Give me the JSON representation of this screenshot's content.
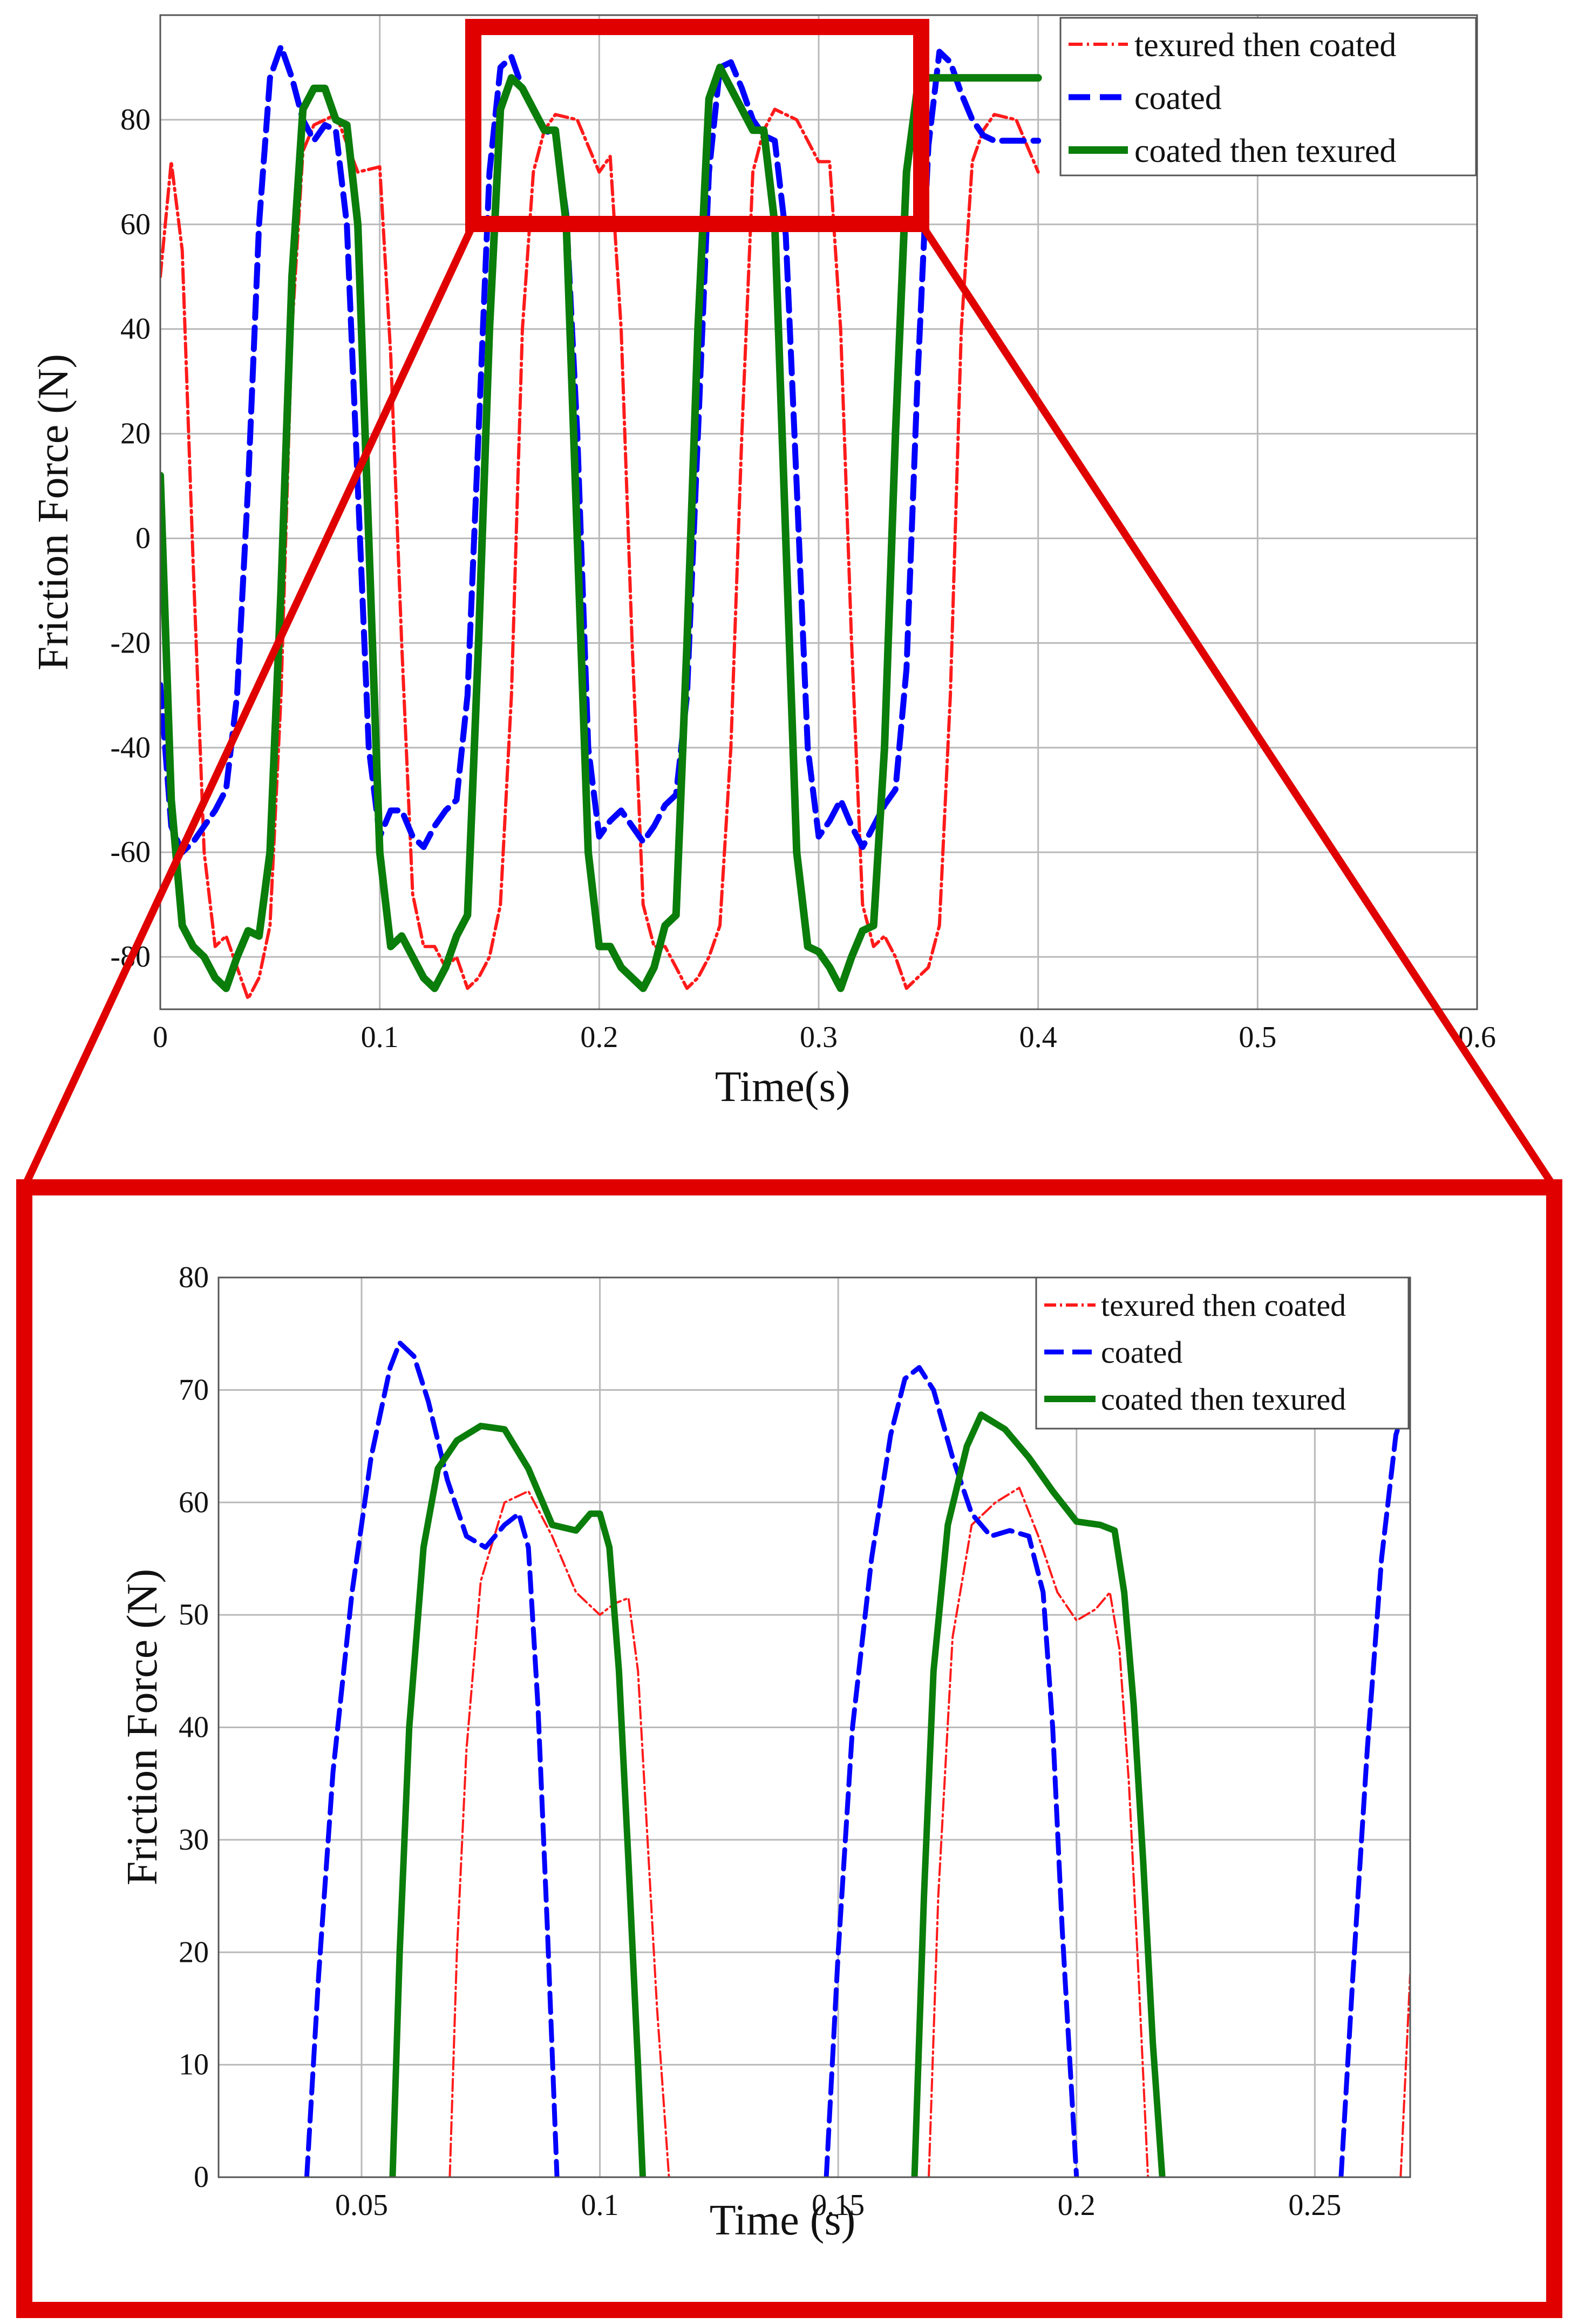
{
  "figure": {
    "zoom_color": "#e00000",
    "background": "#ffffff"
  },
  "series_styles": [
    {
      "name": "texured then coated",
      "color": "#ff1a1a",
      "dash": "dotted-dash"
    },
    {
      "name": "coated",
      "color": "#0000ff",
      "dash": "dashed"
    },
    {
      "name": "coated then texured",
      "color": "#0a7d0a",
      "dash": "solid"
    }
  ],
  "chart_data": [
    {
      "type": "line",
      "title": "",
      "xlabel": "Time(s)",
      "ylabel": "Friction Force (N)",
      "xlim": [
        0,
        0.6
      ],
      "ylim": [
        -90,
        100
      ],
      "xticks": [
        0,
        0.1,
        0.2,
        0.3,
        0.4,
        0.5,
        0.6
      ],
      "xtick_labels": [
        "0",
        "0.1",
        "0.2",
        "0.3",
        "0.4",
        "0.5",
        "0.6"
      ],
      "yticks": [
        -80,
        -60,
        -40,
        -20,
        0,
        20,
        40,
        60,
        80
      ],
      "ytick_labels": [
        "-80",
        "-60",
        "-40",
        "-20",
        "0",
        "20",
        "40",
        "60",
        "80"
      ],
      "legend_position": "top-right",
      "series": [
        {
          "name": "texured then coated",
          "x": [
            0,
            0.005,
            0.01,
            0.015,
            0.02,
            0.025,
            0.03,
            0.04,
            0.045,
            0.05,
            0.055,
            0.06,
            0.065,
            0.07,
            0.08,
            0.09,
            0.1,
            0.105,
            0.11,
            0.115,
            0.12,
            0.125,
            0.13,
            0.135,
            0.14,
            0.145,
            0.15,
            0.155,
            0.16,
            0.165,
            0.17,
            0.175,
            0.18,
            0.19,
            0.2,
            0.205,
            0.21,
            0.215,
            0.22,
            0.225,
            0.23,
            0.235,
            0.24,
            0.245,
            0.25,
            0.255,
            0.26,
            0.265,
            0.27,
            0.275,
            0.28,
            0.29,
            0.3,
            0.305,
            0.31,
            0.315,
            0.32,
            0.325,
            0.33,
            0.335,
            0.34,
            0.345,
            0.35,
            0.355,
            0.36,
            0.365,
            0.37,
            0.375,
            0.38,
            0.39,
            0.4
          ],
          "y": [
            50,
            72,
            55,
            -5,
            -60,
            -78,
            -76,
            -88,
            -84,
            -74,
            -30,
            40,
            74,
            79,
            81,
            70,
            71,
            35,
            -20,
            -68,
            -78,
            -78,
            -82,
            -80,
            -86,
            -84,
            -80,
            -70,
            -30,
            40,
            70,
            78,
            81,
            80,
            70,
            73,
            40,
            -20,
            -70,
            -78,
            -78,
            -82,
            -86,
            -84,
            -80,
            -74,
            -40,
            20,
            70,
            78,
            82,
            80,
            72,
            72,
            40,
            -20,
            -70,
            -78,
            -76,
            -80,
            -86,
            -84,
            -82,
            -74,
            -30,
            40,
            72,
            78,
            81,
            80,
            70
          ]
        },
        {
          "name": "coated",
          "x": [
            0,
            0.005,
            0.01,
            0.015,
            0.02,
            0.025,
            0.03,
            0.035,
            0.04,
            0.045,
            0.05,
            0.055,
            0.06,
            0.065,
            0.07,
            0.075,
            0.08,
            0.085,
            0.09,
            0.095,
            0.1,
            0.105,
            0.11,
            0.115,
            0.12,
            0.125,
            0.13,
            0.135,
            0.14,
            0.145,
            0.15,
            0.155,
            0.16,
            0.165,
            0.17,
            0.175,
            0.18,
            0.185,
            0.19,
            0.195,
            0.2,
            0.205,
            0.21,
            0.215,
            0.22,
            0.225,
            0.23,
            0.235,
            0.24,
            0.245,
            0.25,
            0.255,
            0.26,
            0.265,
            0.27,
            0.275,
            0.28,
            0.285,
            0.29,
            0.295,
            0.3,
            0.305,
            0.31,
            0.315,
            0.32,
            0.325,
            0.33,
            0.335,
            0.34,
            0.345,
            0.35,
            0.355,
            0.36,
            0.365,
            0.37,
            0.375,
            0.38,
            0.385,
            0.39,
            0.395,
            0.4
          ],
          "y": [
            -28,
            -55,
            -60,
            -58,
            -55,
            -52,
            -48,
            -30,
            10,
            60,
            88,
            94,
            88,
            80,
            76,
            79,
            78,
            60,
            10,
            -40,
            -57,
            -52,
            -52,
            -57,
            -59,
            -55,
            -52,
            -50,
            -30,
            20,
            70,
            90,
            92,
            86,
            82,
            78,
            77,
            62,
            20,
            -40,
            -57,
            -54,
            -52,
            -55,
            -58,
            -55,
            -51,
            -49,
            -30,
            20,
            70,
            90,
            91,
            86,
            80,
            77,
            76,
            58,
            10,
            -40,
            -57,
            -54,
            -50,
            -55,
            -59,
            -55,
            -51,
            -48,
            -25,
            30,
            75,
            93,
            91,
            85,
            80,
            77,
            76,
            76,
            76,
            76,
            76
          ]
        },
        {
          "name": "coated then texured",
          "x": [
            0,
            0.005,
            0.01,
            0.015,
            0.02,
            0.025,
            0.03,
            0.035,
            0.04,
            0.045,
            0.05,
            0.055,
            0.06,
            0.065,
            0.07,
            0.075,
            0.08,
            0.085,
            0.09,
            0.095,
            0.1,
            0.105,
            0.11,
            0.115,
            0.12,
            0.125,
            0.13,
            0.135,
            0.14,
            0.145,
            0.15,
            0.155,
            0.16,
            0.165,
            0.17,
            0.175,
            0.18,
            0.185,
            0.19,
            0.195,
            0.2,
            0.205,
            0.21,
            0.215,
            0.22,
            0.225,
            0.23,
            0.235,
            0.24,
            0.245,
            0.25,
            0.255,
            0.26,
            0.265,
            0.27,
            0.275,
            0.28,
            0.285,
            0.29,
            0.295,
            0.3,
            0.305,
            0.31,
            0.315,
            0.32,
            0.325,
            0.33,
            0.335,
            0.34,
            0.345,
            0.35,
            0.355,
            0.36,
            0.365,
            0.37,
            0.375,
            0.38,
            0.385,
            0.39,
            0.395,
            0.4
          ],
          "y": [
            12,
            -50,
            -74,
            -78,
            -80,
            -84,
            -86,
            -80,
            -75,
            -76,
            -60,
            -10,
            50,
            82,
            86,
            86,
            80,
            79,
            60,
            0,
            -60,
            -78,
            -76,
            -80,
            -84,
            -86,
            -82,
            -76,
            -72,
            -20,
            40,
            82,
            88,
            86,
            82,
            78,
            78,
            60,
            0,
            -60,
            -78,
            -78,
            -82,
            -84,
            -86,
            -82,
            -74,
            -72,
            -20,
            40,
            84,
            90,
            86,
            82,
            78,
            78,
            60,
            0,
            -60,
            -78,
            -79,
            -82,
            -86,
            -80,
            -75,
            -74,
            -40,
            20,
            70,
            86,
            88,
            88,
            88,
            88,
            88,
            88,
            88,
            88,
            88,
            88,
            88
          ]
        }
      ]
    },
    {
      "type": "line",
      "title": "",
      "xlabel": "Time (s)",
      "ylabel": "Friction Force (N)",
      "xlim": [
        0.02,
        0.27
      ],
      "ylim": [
        0,
        80
      ],
      "xticks": [
        0.05,
        0.1,
        0.15,
        0.2,
        0.25
      ],
      "xtick_labels": [
        "0.05",
        "0.1",
        "0.15",
        "0.2",
        "0.25"
      ],
      "yticks": [
        0,
        10,
        20,
        30,
        40,
        50,
        60,
        70,
        80
      ],
      "ytick_labels": [
        "0",
        "10",
        "20",
        "30",
        "40",
        "50",
        "60",
        "70",
        "80"
      ],
      "legend_position": "top-right",
      "series": [
        {
          "name": "texured then coated",
          "segments": [
            {
              "x": [
                0.0685,
                0.07,
                0.072,
                0.075,
                0.08,
                0.085,
                0.09,
                0.095,
                0.1,
                0.103,
                0.106,
                0.108,
                0.11,
                0.112,
                0.1145
              ],
              "y": [
                0,
                20,
                38,
                53,
                60,
                61,
                57,
                52,
                50,
                51,
                51.5,
                45,
                30,
                15,
                0
              ]
            },
            {
              "x": [
                0.169,
                0.171,
                0.174,
                0.178,
                0.183,
                0.188,
                0.192,
                0.196,
                0.2,
                0.204,
                0.207,
                0.209,
                0.211,
                0.213,
                0.215
              ],
              "y": [
                0,
                25,
                48,
                58,
                60,
                61.3,
                57,
                52,
                49.5,
                50.5,
                52,
                47,
                35,
                18,
                0
              ]
            },
            {
              "x": [
                0.268,
                0.27
              ],
              "y": [
                0,
                18
              ]
            }
          ]
        },
        {
          "name": "coated",
          "segments": [
            {
              "x": [
                0.0385,
                0.041,
                0.044,
                0.048,
                0.052,
                0.056,
                0.058,
                0.061,
                0.064,
                0.068,
                0.072,
                0.076,
                0.08,
                0.083,
                0.085,
                0.087,
                0.089,
                0.091
              ],
              "y": [
                0,
                18,
                36,
                52,
                64,
                72,
                74.2,
                73,
                69,
                62,
                57,
                56,
                58,
                59,
                56,
                42,
                22,
                0
              ]
            },
            {
              "x": [
                0.1475,
                0.15,
                0.153,
                0.157,
                0.161,
                0.164,
                0.167,
                0.17,
                0.174,
                0.178,
                0.182,
                0.186,
                0.19,
                0.193,
                0.195,
                0.197,
                0.2
              ],
              "y": [
                0,
                20,
                40,
                55,
                66,
                71,
                72,
                70,
                64,
                59,
                57,
                57.5,
                57,
                52,
                40,
                22,
                0
              ]
            },
            {
              "x": [
                0.2555,
                0.258,
                0.261,
                0.264,
                0.267,
                0.27
              ],
              "y": [
                0,
                18,
                38,
                55,
                66,
                70
              ]
            }
          ]
        },
        {
          "name": "coated then texured",
          "segments": [
            {
              "x": [
                0.0565,
                0.058,
                0.06,
                0.063,
                0.066,
                0.07,
                0.075,
                0.08,
                0.085,
                0.09,
                0.095,
                0.098,
                0.1,
                0.102,
                0.104,
                0.106,
                0.108,
                0.109
              ],
              "y": [
                0,
                20,
                40,
                56,
                63,
                65.5,
                66.8,
                66.5,
                63,
                58,
                57.5,
                59,
                59,
                56,
                45,
                28,
                10,
                0
              ]
            },
            {
              "x": [
                0.166,
                0.168,
                0.17,
                0.173,
                0.177,
                0.18,
                0.185,
                0.19,
                0.195,
                0.2,
                0.205,
                0.208,
                0.21,
                0.212,
                0.214,
                0.216,
                0.218
              ],
              "y": [
                0,
                25,
                45,
                58,
                65,
                67.8,
                66.5,
                64,
                61,
                58.3,
                58,
                57.5,
                52,
                42,
                28,
                12,
                0
              ]
            }
          ]
        }
      ]
    }
  ]
}
